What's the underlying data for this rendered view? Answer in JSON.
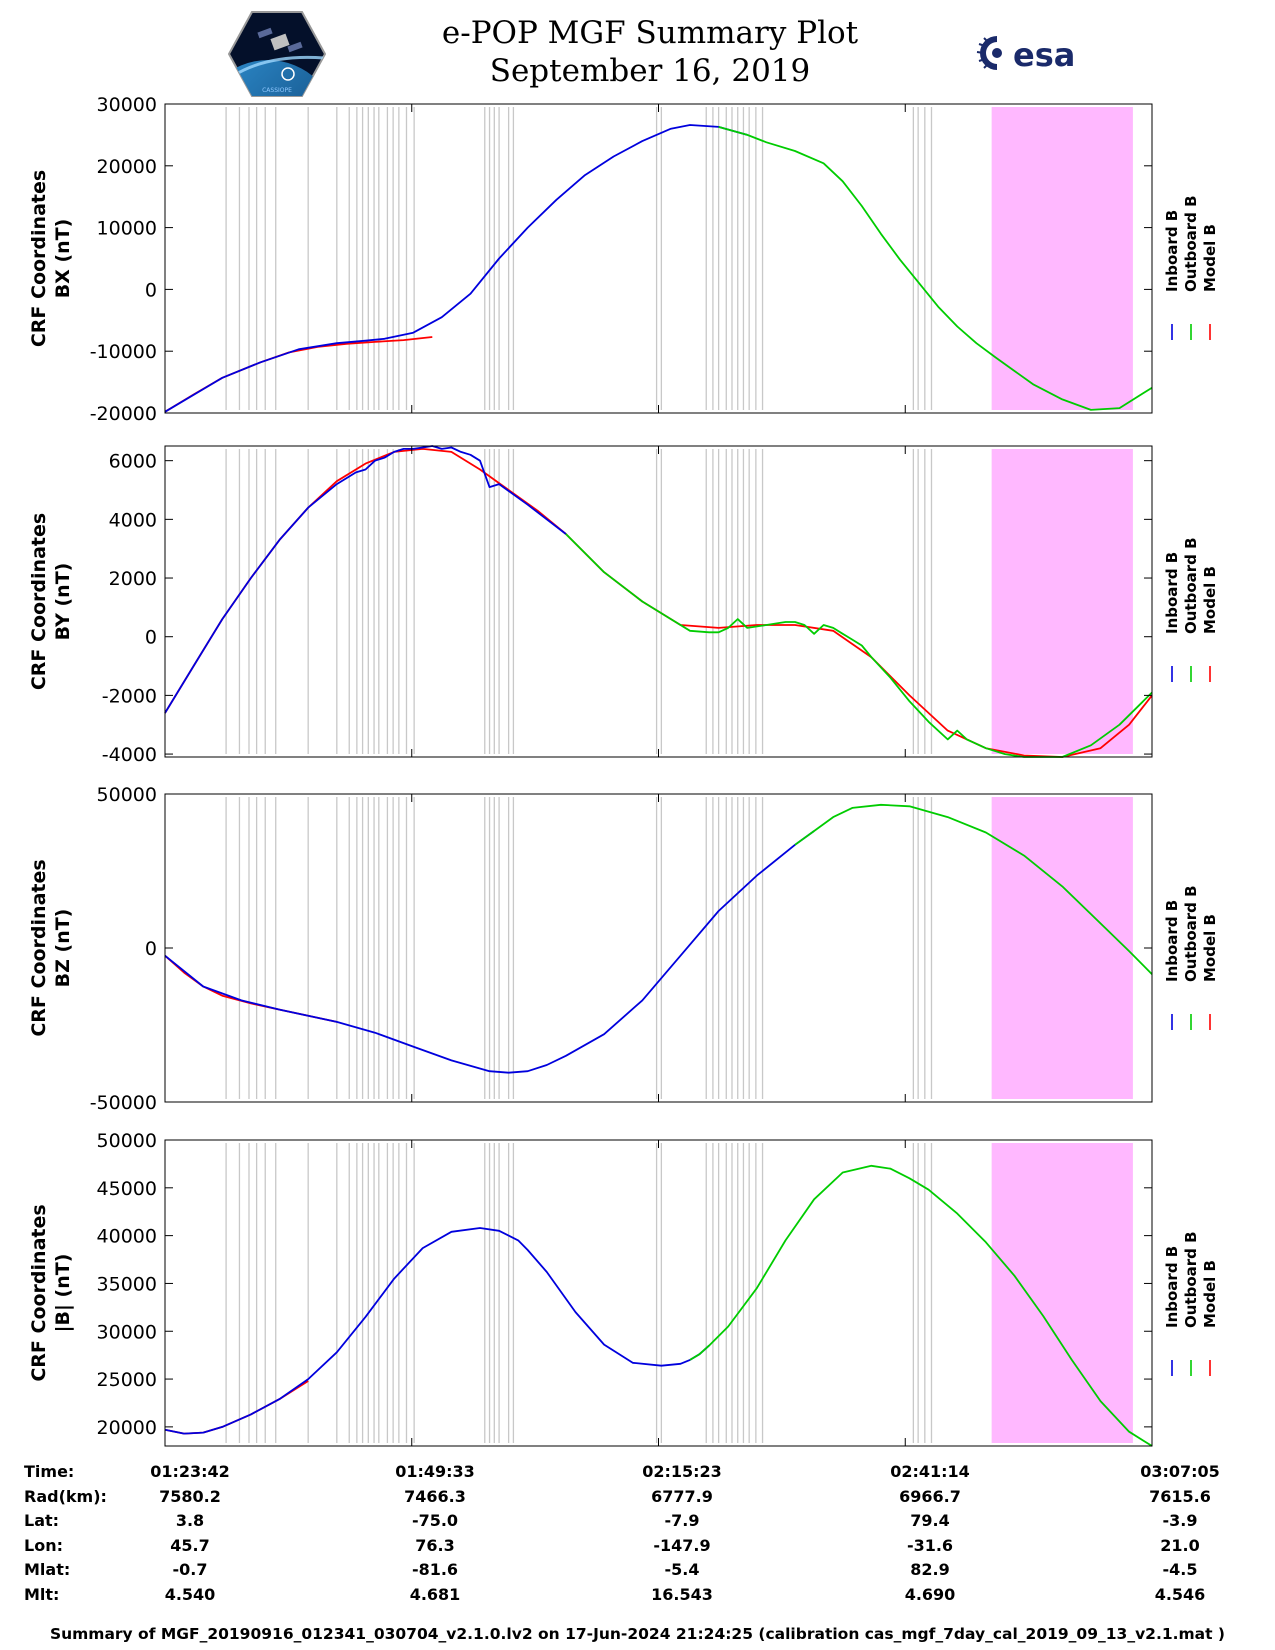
{
  "title": {
    "line1": "e-POP MGF Summary Plot",
    "line2": "September 16, 2019"
  },
  "logos": {
    "left": "cassiope-mission-logo",
    "left_text": "CASSIOPE",
    "right": "esa-logo",
    "right_text": "esa"
  },
  "colors": {
    "inboard": "#0000dd",
    "outboard": "#00cc00",
    "model": "#ff0000",
    "shade": "#ffb8ff",
    "gap_lines": "#c8c8c8"
  },
  "ephemeris": {
    "labels": [
      "Time:",
      "Rad(km):",
      "Lat:",
      "Lon:",
      "Mlat:",
      "Mlt:"
    ],
    "columns": [
      [
        "01:23:42",
        "7580.2",
        "3.8",
        "45.7",
        "-0.7",
        "4.540"
      ],
      [
        "01:49:33",
        "7466.3",
        "-75.0",
        "76.3",
        "-81.6",
        "4.681"
      ],
      [
        "02:15:23",
        "6777.9",
        "-7.9",
        "-147.9",
        "-5.4",
        "16.543"
      ],
      [
        "02:41:14",
        "6966.7",
        "79.4",
        "-31.6",
        "82.9",
        "4.690"
      ],
      [
        "03:07:05",
        "7615.6",
        "-3.9",
        "21.0",
        "-4.5",
        "4.546"
      ]
    ]
  },
  "footer": "Summary of MGF_20190916_012341_030704_v2.1.0.lv2 on 17-Jun-2024 21:24:25 (calibration cas_mgf_7day_cal_2019_09_13_v2.1.mat )",
  "chart_data": [
    {
      "type": "line",
      "ylabel_line1": "CRF Coordinates",
      "ylabel_line2": "BX (nT)",
      "ylim": [
        -20000,
        30000
      ],
      "yticks": [
        "30000",
        "20000",
        "10000",
        "0",
        "-10000",
        "-20000"
      ],
      "ytick_values": [
        30000,
        20000,
        10000,
        0,
        -10000,
        -20000
      ],
      "x_range_minutes": [
        0,
        103.4
      ],
      "legend": [
        "Inboard B",
        "Outboard B",
        "Model B"
      ],
      "series": [
        {
          "name": "Model B",
          "x": [
            0,
            3,
            6,
            10,
            13,
            16,
            19,
            22,
            25,
            28
          ],
          "y": [
            -19800,
            -17000,
            -14300,
            -11800,
            -10200,
            -9300,
            -8800,
            -8500,
            -8200,
            -7700
          ]
        },
        {
          "name": "Inboard B",
          "x": [
            0,
            6,
            10,
            14,
            18,
            21,
            23,
            26,
            29,
            32,
            35,
            38,
            41,
            44,
            47,
            50,
            53,
            55,
            58,
            61
          ],
          "y": [
            -19800,
            -14300,
            -11800,
            -9700,
            -8700,
            -8300,
            -8000,
            -7000,
            -4500,
            -700,
            5000,
            10000,
            14500,
            18500,
            21500,
            24000,
            26000,
            26600,
            26300,
            25000
          ]
        },
        {
          "name": "Outboard B",
          "x": [
            58,
            61,
            63,
            66,
            69,
            71,
            73,
            75,
            77,
            79,
            81,
            83,
            85,
            87,
            89,
            91,
            94,
            97,
            100,
            103.4
          ],
          "y": [
            26300,
            25000,
            23800,
            22400,
            20400,
            17500,
            13500,
            9000,
            4800,
            1000,
            -2800,
            -6000,
            -8700,
            -11000,
            -13200,
            -15400,
            -17800,
            -19500,
            -19200,
            -15900
          ]
        }
      ],
      "shade_x": [
        86.6,
        101.4
      ],
      "gap_lines_x": [
        6.4,
        7.8,
        8.8,
        9.6,
        10.5,
        11.6,
        15.0,
        18.0,
        19.3,
        20.1,
        20.7,
        21.3,
        21.9,
        22.4,
        23.3,
        23.9,
        24.5,
        25.3,
        26.1,
        33.5,
        34.0,
        34.5,
        35.0,
        36.0,
        36.5,
        51.5,
        52.0,
        56.7,
        57.4,
        58.0,
        58.8,
        59.4,
        60.0,
        60.6,
        61.2,
        61.9,
        62.6,
        78.4,
        78.9,
        79.6,
        80.3
      ]
    },
    {
      "type": "line",
      "ylabel_line1": "CRF Coordinates",
      "ylabel_line2": "BY (nT)",
      "ylim": [
        -4100,
        6500
      ],
      "yticks": [
        "6000",
        "4000",
        "2000",
        "0",
        "-2000",
        "-4000"
      ],
      "ytick_values": [
        6000,
        4000,
        2000,
        0,
        -2000,
        -4000
      ],
      "x_range_minutes": [
        0,
        103.4
      ],
      "legend": [
        "Inboard B",
        "Outboard B",
        "Model B"
      ],
      "series": [
        {
          "name": "Model B",
          "x": [
            0,
            3,
            6,
            9,
            12,
            15,
            18,
            21,
            24,
            27,
            30,
            33,
            36,
            39,
            42,
            46,
            50,
            54,
            58,
            62,
            66,
            70,
            74,
            78,
            82,
            86,
            90,
            94,
            98,
            101,
            103.4
          ],
          "y": [
            -2600,
            -1000,
            600,
            2000,
            3300,
            4400,
            5300,
            5900,
            6300,
            6400,
            6300,
            5700,
            5000,
            4300,
            3500,
            2200,
            1200,
            400,
            300,
            400,
            400,
            200,
            -700,
            -2000,
            -3200,
            -3800,
            -4050,
            -4100,
            -3800,
            -3000,
            -2000
          ]
        },
        {
          "name": "Inboard B",
          "x": [
            0,
            3,
            6,
            9,
            12,
            15,
            18,
            20,
            21,
            22,
            23,
            24,
            25,
            26,
            27,
            28,
            29,
            30,
            31,
            32,
            33,
            34,
            35,
            38,
            42
          ],
          "y": [
            -2600,
            -1000,
            600,
            2000,
            3300,
            4400,
            5200,
            5600,
            5700,
            6000,
            6100,
            6300,
            6400,
            6400,
            6450,
            6500,
            6400,
            6450,
            6300,
            6200,
            6000,
            5100,
            5200,
            4500,
            3500
          ]
        },
        {
          "name": "Outboard B",
          "x": [
            42,
            46,
            50,
            53,
            55,
            57,
            58,
            59,
            60,
            61,
            63,
            64,
            65,
            66,
            67,
            68,
            69,
            70,
            71,
            72,
            73,
            74,
            76,
            78,
            80,
            82,
            83,
            84,
            86,
            88,
            90,
            94,
            97,
            100,
            103.4
          ],
          "y": [
            3500,
            2200,
            1200,
            600,
            200,
            150,
            150,
            300,
            600,
            300,
            400,
            450,
            500,
            500,
            400,
            100,
            400,
            300,
            100,
            -100,
            -300,
            -700,
            -1400,
            -2200,
            -2900,
            -3500,
            -3200,
            -3500,
            -3800,
            -4000,
            -4100,
            -4100,
            -3700,
            -3000,
            -1900
          ]
        }
      ],
      "shade_x": [
        86.6,
        101.4
      ],
      "gap_lines_x": [
        6.4,
        7.8,
        8.8,
        9.6,
        10.5,
        11.6,
        15.0,
        18.0,
        19.3,
        20.1,
        20.7,
        21.3,
        21.9,
        22.4,
        23.3,
        23.9,
        24.5,
        25.3,
        26.1,
        33.5,
        34.0,
        34.5,
        35.0,
        36.0,
        36.5,
        51.5,
        52.0,
        56.7,
        57.4,
        58.0,
        58.8,
        59.4,
        60.0,
        60.6,
        61.2,
        61.9,
        62.6,
        78.4,
        78.9,
        79.6,
        80.3
      ]
    },
    {
      "type": "line",
      "ylabel_line1": "CRF Coordinates",
      "ylabel_line2": "BZ (nT)",
      "ylim": [
        -50000,
        50000
      ],
      "yticks": [
        "50000",
        "0",
        "-50000"
      ],
      "ytick_values": [
        50000,
        0,
        -50000
      ],
      "x_range_minutes": [
        0,
        103.4
      ],
      "legend": [
        "Inboard B",
        "Outboard B",
        "Model B"
      ],
      "series": [
        {
          "name": "Model B",
          "x": [
            0,
            2,
            4,
            6,
            9,
            12,
            15,
            18
          ],
          "y": [
            -2500,
            -8000,
            -12500,
            -15500,
            -18000,
            -20000,
            -22000,
            -24000
          ]
        },
        {
          "name": "Inboard B",
          "x": [
            0,
            4,
            8,
            12,
            18,
            22,
            26,
            30,
            34,
            36,
            38,
            40,
            42,
            46,
            50,
            54,
            58,
            62,
            66,
            68
          ],
          "y": [
            -2500,
            -12500,
            -17000,
            -20000,
            -24000,
            -27500,
            -32000,
            -36500,
            -40000,
            -40500,
            -40000,
            -38000,
            -35000,
            -28000,
            -17000,
            -2500,
            12000,
            23500,
            33500,
            38000
          ]
        },
        {
          "name": "Outboard B",
          "x": [
            66,
            68,
            70,
            72,
            75,
            78,
            82,
            86,
            90,
            94,
            98,
            101,
            103.4
          ],
          "y": [
            33500,
            38000,
            42500,
            45500,
            46500,
            46000,
            42500,
            37500,
            30000,
            20000,
            8000,
            -1000,
            -8500
          ]
        }
      ],
      "shade_x": [
        86.6,
        101.4
      ],
      "gap_lines_x": [
        6.4,
        7.8,
        8.8,
        9.6,
        10.5,
        11.6,
        15.0,
        18.0,
        19.3,
        20.1,
        20.7,
        21.3,
        21.9,
        22.4,
        23.3,
        23.9,
        24.5,
        25.3,
        26.1,
        33.5,
        34.0,
        34.5,
        35.0,
        36.0,
        36.5,
        51.5,
        52.0,
        56.7,
        57.4,
        58.0,
        58.8,
        59.4,
        60.0,
        60.6,
        61.2,
        61.9,
        62.6,
        78.4,
        78.9,
        79.6,
        80.3
      ]
    },
    {
      "type": "line",
      "ylabel_line1": "CRF Coordinates",
      "ylabel_line2": "|B| (nT)",
      "ylim": [
        18000,
        50000
      ],
      "yticks": [
        "50000",
        "45000",
        "40000",
        "35000",
        "30000",
        "25000",
        "20000"
      ],
      "ytick_values": [
        50000,
        45000,
        40000,
        35000,
        30000,
        25000,
        20000
      ],
      "x_range_minutes": [
        0,
        103.4
      ],
      "legend": [
        "Inboard B",
        "Outboard B",
        "Model B"
      ],
      "series": [
        {
          "name": "Model B",
          "x": [
            0,
            2,
            4,
            6,
            9,
            12,
            15
          ],
          "y": [
            19700,
            19300,
            19400,
            20000,
            21300,
            22900,
            24800
          ]
        },
        {
          "name": "Inboard B",
          "x": [
            0,
            2,
            4,
            6,
            9,
            12,
            15,
            18,
            21,
            24,
            27,
            30,
            33,
            35,
            36,
            37,
            38,
            40,
            43,
            46,
            49,
            52,
            54,
            55,
            56,
            57
          ],
          "y": [
            19700,
            19300,
            19400,
            20000,
            21300,
            22900,
            25000,
            27800,
            31500,
            35500,
            38700,
            40400,
            40800,
            40500,
            40000,
            39500,
            38500,
            36200,
            32000,
            28600,
            26700,
            26400,
            26600,
            27000,
            27600,
            28500
          ]
        },
        {
          "name": "Outboard B",
          "x": [
            55,
            56,
            57,
            59,
            62,
            65,
            68,
            71,
            74,
            76,
            78,
            80,
            83,
            86,
            89,
            92,
            95,
            98,
            101,
            103.4
          ],
          "y": [
            27000,
            27600,
            28500,
            30500,
            34500,
            39500,
            43800,
            46600,
            47300,
            47000,
            46000,
            44800,
            42300,
            39300,
            35800,
            31600,
            27000,
            22700,
            19500,
            18000
          ]
        }
      ],
      "shade_x": [
        86.6,
        101.4
      ],
      "gap_lines_x": [
        6.4,
        7.8,
        8.8,
        9.6,
        10.5,
        11.6,
        15.0,
        18.0,
        19.3,
        20.1,
        20.7,
        21.3,
        21.9,
        22.4,
        23.3,
        23.9,
        24.5,
        25.3,
        26.1,
        33.5,
        34.0,
        34.5,
        35.0,
        36.0,
        36.5,
        51.5,
        52.0,
        56.7,
        57.4,
        58.0,
        58.8,
        59.4,
        60.0,
        60.6,
        61.2,
        61.9,
        62.6,
        78.4,
        78.9,
        79.6,
        80.3
      ]
    }
  ]
}
